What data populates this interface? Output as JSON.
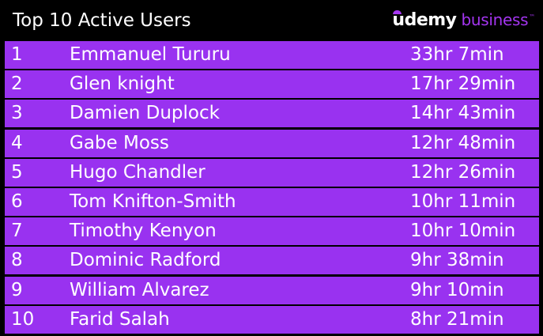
{
  "header": {
    "title": "Top 10 Active Users",
    "logo": {
      "word": "udemy",
      "suffix": "business",
      "tm": "™",
      "accent_color": "#a435f0"
    }
  },
  "table": {
    "row_color": "#9932f0",
    "rows": [
      {
        "rank": "1",
        "name": "Emmanuel Tururu",
        "time": "33hr 7min"
      },
      {
        "rank": "2",
        "name": "Glen knight",
        "time": "17hr 29min"
      },
      {
        "rank": "3",
        "name": "Damien Duplock",
        "time": "14hr 43min"
      },
      {
        "rank": "4",
        "name": "Gabe Moss",
        "time": "12hr 48min"
      },
      {
        "rank": "5",
        "name": "Hugo Chandler",
        "time": "12hr 26min"
      },
      {
        "rank": "6",
        "name": "Tom Knifton-Smith",
        "time": "10hr 11min"
      },
      {
        "rank": "7",
        "name": "Timothy Kenyon",
        "time": "10hr 10min"
      },
      {
        "rank": "8",
        "name": "Dominic Radford",
        "time": "9hr 38min"
      },
      {
        "rank": "9",
        "name": "William Alvarez",
        "time": "9hr 10min"
      },
      {
        "rank": "10",
        "name": "Farid Salah",
        "time": "8hr 21min"
      }
    ]
  }
}
